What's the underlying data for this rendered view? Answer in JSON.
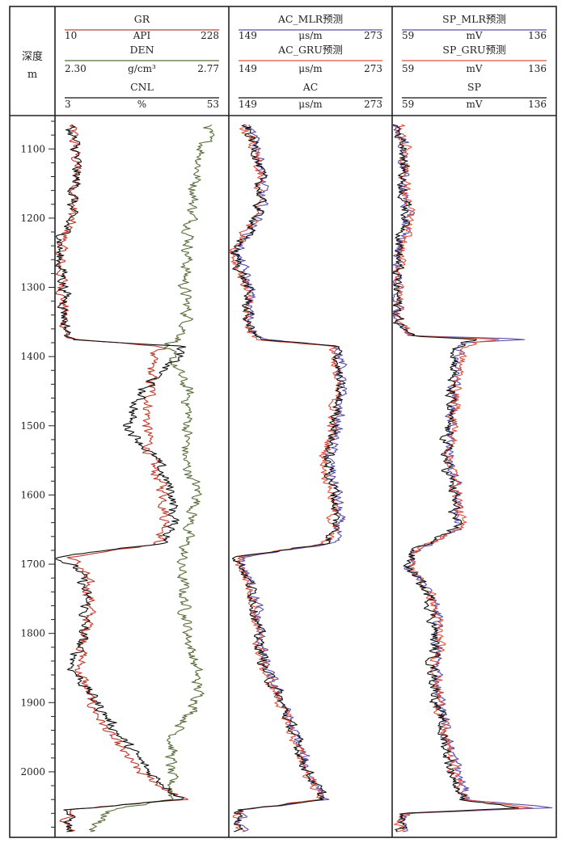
{
  "chart_data": {
    "type": "line",
    "depth_axis": {
      "label": "深度",
      "unit": "m",
      "range": [
        1060,
        2090
      ],
      "major_ticks": [
        1100,
        1200,
        1300,
        1400,
        1500,
        1600,
        1700,
        1800,
        1900,
        2000
      ],
      "minor_step": 20
    },
    "tracks": [
      {
        "curves": [
          {
            "name": "GR",
            "unit": "API",
            "min": "10",
            "max": "228",
            "range": [
              10,
              228
            ],
            "color": "#b5473a"
          },
          {
            "name": "DEN",
            "unit": "g/cm³",
            "min": "2.30",
            "max": "2.77",
            "range": [
              2.3,
              2.77
            ],
            "color": "#5a6e3a"
          },
          {
            "name": "CNL",
            "unit": "%",
            "min": "3",
            "max": "53",
            "range": [
              3,
              53
            ],
            "color": "#111111"
          }
        ],
        "series": [
          {
            "name": "GR",
            "color": "#c0392b",
            "depths": [
              1065,
              1100,
              1150,
              1200,
              1250,
              1300,
              1350,
              1375,
              1385,
              1400,
              1450,
              1500,
              1550,
              1600,
              1650,
              1670,
              1690,
              1710,
              1750,
              1800,
              1850,
              1900,
              1950,
              2000,
              2040,
              2055,
              2070,
              2085
            ],
            "values": [
              30,
              35,
              38,
              30,
              15,
              20,
              22,
              27,
              145,
              130,
              130,
              125,
              130,
              148,
              150,
              140,
              30,
              45,
              55,
              50,
              40,
              55,
              80,
              115,
              170,
              25,
              25,
              28
            ]
          },
          {
            "name": "DEN",
            "color": "#5a6e3a",
            "depths": [
              1065,
              1100,
              1150,
              1200,
              1250,
              1300,
              1350,
              1375,
              1385,
              1400,
              1450,
              1500,
              1550,
              1600,
              1650,
              1700,
              1750,
              1800,
              1850,
              1900,
              1950,
              2000,
              2040,
              2055,
              2085
            ],
            "values": [
              2.72,
              2.7,
              2.68,
              2.67,
              2.66,
              2.65,
              2.66,
              2.64,
              2.6,
              2.61,
              2.66,
              2.66,
              2.65,
              2.69,
              2.66,
              2.64,
              2.65,
              2.66,
              2.68,
              2.69,
              2.62,
              2.61,
              2.62,
              2.45,
              2.4
            ]
          },
          {
            "name": "CNL",
            "color": "#111111",
            "depths": [
              1065,
              1100,
              1150,
              1200,
              1250,
              1300,
              1350,
              1375,
              1385,
              1400,
              1450,
              1500,
              1550,
              1600,
              1650,
              1670,
              1690,
              1710,
              1750,
              1800,
              1850,
              1900,
              1950,
              2000,
              2040,
              2055,
              2085
            ],
            "values": [
              7,
              9,
              9,
              7,
              4,
              6,
              6,
              7,
              40,
              38,
              28,
              24,
              32,
              37,
              37,
              34,
              4,
              10,
              12,
              11,
              8,
              15,
              22,
              30,
              40,
              7,
              7
            ]
          }
        ]
      },
      {
        "curves": [
          {
            "name": "AC_MLR预测",
            "unit": "μs/m",
            "min": "149",
            "max": "273",
            "range": [
              149,
              273
            ],
            "color": "#5b4ea8"
          },
          {
            "name": "AC_GRU预测",
            "unit": "μs/m",
            "min": "149",
            "max": "273",
            "range": [
              149,
              273
            ],
            "color": "#e0503a"
          },
          {
            "name": "AC",
            "unit": "μs/m",
            "min": "149",
            "max": "273",
            "range": [
              149,
              273
            ],
            "color": "#111111"
          }
        ],
        "series": [
          {
            "name": "AC_MLR预测",
            "color": "#5b4ea8",
            "depths": [
              1065,
              1100,
              1150,
              1200,
              1250,
              1300,
              1350,
              1375,
              1385,
              1400,
              1450,
              1500,
              1550,
              1600,
              1650,
              1670,
              1690,
              1710,
              1750,
              1800,
              1850,
              1900,
              1950,
              2000,
              2040,
              2055,
              2085
            ],
            "values": [
              162,
              172,
              175,
              172,
              155,
              165,
              165,
              172,
              233,
              234,
              234,
              232,
              225,
              232,
              232,
              226,
              157,
              162,
              170,
              172,
              177,
              190,
              200,
              210,
              222,
              157,
              158
            ]
          },
          {
            "name": "AC_GRU预测",
            "color": "#e0503a",
            "depths": [
              1065,
              1100,
              1150,
              1200,
              1250,
              1300,
              1350,
              1375,
              1385,
              1400,
              1450,
              1500,
              1550,
              1600,
              1650,
              1670,
              1690,
              1710,
              1750,
              1800,
              1850,
              1900,
              1950,
              2000,
              2040,
              2055,
              2085
            ],
            "values": [
              160,
              168,
              172,
              170,
              152,
              162,
              162,
              170,
              228,
              230,
              230,
              228,
              221,
              228,
              228,
              222,
              155,
              160,
              168,
              170,
              175,
              188,
              198,
              208,
              220,
              155,
              156
            ]
          },
          {
            "name": "AC",
            "color": "#111111",
            "depths": [
              1065,
              1100,
              1150,
              1200,
              1250,
              1300,
              1350,
              1375,
              1385,
              1400,
              1450,
              1500,
              1550,
              1600,
              1650,
              1670,
              1690,
              1710,
              1750,
              1800,
              1850,
              1900,
              1950,
              2000,
              2040,
              2055,
              2085
            ],
            "values": [
              161,
              170,
              173,
              171,
              153,
              163,
              163,
              171,
              230,
              232,
              232,
              230,
              223,
              230,
              230,
              224,
              156,
              161,
              169,
              171,
              176,
              189,
              199,
              209,
              221,
              156,
              157
            ]
          }
        ]
      },
      {
        "curves": [
          {
            "name": "SP_MLR预测",
            "unit": "mV",
            "min": "59",
            "max": "136",
            "range": [
              59,
              136
            ],
            "color": "#5b4ea8"
          },
          {
            "name": "SP_GRU预测",
            "unit": "mV",
            "min": "59",
            "max": "136",
            "range": [
              59,
              136
            ],
            "color": "#e0503a"
          },
          {
            "name": "SP",
            "unit": "mV",
            "min": "59",
            "max": "136",
            "range": [
              59,
              136
            ],
            "color": "#111111"
          }
        ],
        "series": [
          {
            "name": "SP_MLR预测",
            "color": "#5b4ea8",
            "depths": [
              1065,
              1100,
              1150,
              1200,
              1250,
              1300,
              1350,
              1370,
              1375,
              1380,
              1390,
              1450,
              1500,
              1550,
              1600,
              1650,
              1680,
              1700,
              1750,
              1800,
              1850,
              1900,
              1950,
              2000,
              2040,
              2052,
              2060,
              2085
            ],
            "values": [
              61,
              65,
              64,
              66,
              62,
              61,
              62,
              67,
              126,
              95,
              91,
              88,
              87,
              86,
              90,
              90,
              70,
              66,
              79,
              80,
              80,
              82,
              85,
              90,
              94,
              135,
              65,
              63
            ]
          },
          {
            "name": "SP_GRU预测",
            "color": "#e0503a",
            "depths": [
              1065,
              1100,
              1150,
              1200,
              1250,
              1300,
              1350,
              1370,
              1375,
              1380,
              1390,
              1450,
              1500,
              1550,
              1600,
              1650,
              1680,
              1700,
              1750,
              1800,
              1850,
              1900,
              1950,
              2000,
              2040,
              2052,
              2060,
              2085
            ],
            "values": [
              62,
              66,
              65,
              67,
              63,
              62,
              63,
              68,
              110,
              98,
              92,
              89,
              88,
              86,
              90,
              91,
              70,
              67,
              78,
              81,
              80,
              81,
              84,
              88,
              93,
              125,
              64,
              62
            ]
          },
          {
            "name": "SP",
            "color": "#111111",
            "depths": [
              1065,
              1100,
              1150,
              1200,
              1250,
              1300,
              1350,
              1370,
              1375,
              1380,
              1390,
              1450,
              1500,
              1550,
              1600,
              1650,
              1680,
              1700,
              1750,
              1800,
              1850,
              1900,
              1950,
              2000,
              2040,
              2052,
              2060,
              2085
            ],
            "values": [
              61,
              65,
              64,
              66,
              62,
              61,
              62,
              67,
              100,
              93,
              90,
              86,
              85,
              84,
              88,
              88,
              69,
              66,
              77,
              79,
              78,
              80,
              83,
              87,
              92,
              120,
              64,
              62
            ]
          }
        ]
      }
    ]
  }
}
